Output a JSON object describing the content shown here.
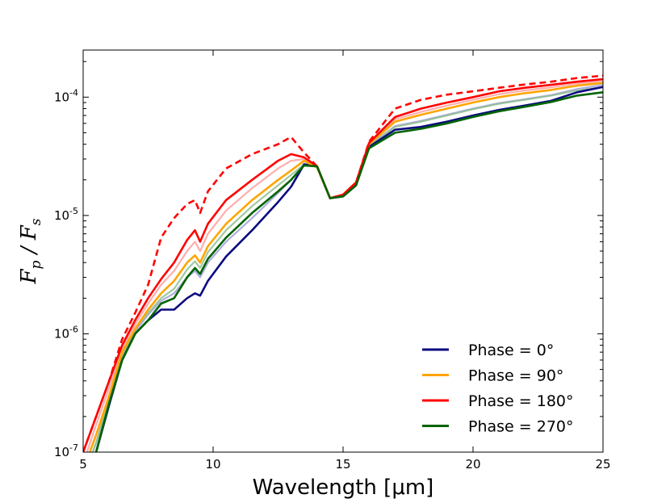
{
  "chart_data": {
    "type": "line",
    "title": "",
    "xlabel": "Wavelength [μm]",
    "ylabel": "Fp/Fs",
    "xlim": [
      5,
      25
    ],
    "ylim": [
      1e-07,
      0.00025
    ],
    "yscale": "log",
    "x_ticks": [
      5,
      10,
      15,
      20,
      25
    ],
    "x_tick_labels": [
      "5",
      "10",
      "15",
      "20",
      "25"
    ],
    "y_ticks": [
      1e-07,
      1e-06,
      1e-05,
      0.0001
    ],
    "y_tick_labels": [
      {
        "base": "10",
        "exp": "-7"
      },
      {
        "base": "10",
        "exp": "-6"
      },
      {
        "base": "10",
        "exp": "-5"
      },
      {
        "base": "10",
        "exp": "-4"
      }
    ],
    "legend_position": "lower-right",
    "x": [
      5.0,
      5.5,
      6.0,
      6.5,
      7.0,
      7.5,
      8.0,
      8.5,
      9.0,
      9.3,
      9.5,
      9.8,
      10.5,
      11.5,
      12.5,
      13.0,
      13.5,
      14.0,
      14.5,
      15.0,
      15.5,
      16.0,
      17.0,
      18.0,
      19.0,
      20.0,
      21.0,
      22.0,
      23.0,
      24.0,
      25.0
    ],
    "series": [
      {
        "name": "Phase = 0°",
        "color": "#0b0b80",
        "style": "solid",
        "values": [
          5e-08,
          1e-07,
          2.5e-07,
          6e-07,
          1e-06,
          1.3e-06,
          1.6e-06,
          1.6e-06,
          2e-06,
          2.2e-06,
          2.1e-06,
          2.8e-06,
          4.5e-06,
          7.5e-06,
          1.3e-05,
          1.75e-05,
          2.7e-05,
          2.6e-05,
          1.4e-05,
          1.45e-05,
          1.8e-05,
          3.8e-05,
          5.3e-05,
          5.6e-05,
          6.2e-05,
          7e-05,
          7.8e-05,
          8.5e-05,
          9.3e-05,
          0.00011,
          0.000122
        ]
      },
      {
        "name": "Phase = 90°",
        "color": "#ffa500",
        "style": "solid",
        "values": [
          7e-08,
          1.4e-07,
          3e-07,
          7e-07,
          1.1e-06,
          1.6e-06,
          2.2e-06,
          2.8e-06,
          4e-06,
          4.6e-06,
          4e-06,
          5.5e-06,
          8.5e-06,
          1.35e-05,
          2e-05,
          2.4e-05,
          2.9e-05,
          2.55e-05,
          1.4e-05,
          1.5e-05,
          1.9e-05,
          4e-05,
          6.2e-05,
          7.1e-05,
          8e-05,
          9e-05,
          0.0001,
          0.000108,
          0.000115,
          0.000125,
          0.000132
        ]
      },
      {
        "name": "Phase = 180°",
        "color": "#ff0000",
        "style": "solid",
        "values": [
          1e-07,
          2e-07,
          4e-07,
          8e-07,
          1.3e-06,
          2e-06,
          2.9e-06,
          4e-06,
          6.2e-06,
          7.5e-06,
          6e-06,
          8.5e-06,
          1.35e-05,
          2e-05,
          2.9e-05,
          3.3e-05,
          3.1e-05,
          2.6e-05,
          1.4e-05,
          1.5e-05,
          1.9e-05,
          4.1e-05,
          6.8e-05,
          8e-05,
          9e-05,
          0.0001,
          0.000112,
          0.00012,
          0.000127,
          0.000135,
          0.000142
        ]
      },
      {
        "name": "Phase = 270°",
        "color": "#006400",
        "style": "solid",
        "values": [
          5e-08,
          1e-07,
          2.6e-07,
          6e-07,
          1e-06,
          1.3e-06,
          1.8e-06,
          2e-06,
          3e-06,
          3.6e-06,
          3.2e-06,
          4.3e-06,
          6.5e-06,
          1.05e-05,
          1.6e-05,
          2e-05,
          2.65e-05,
          2.6e-05,
          1.4e-05,
          1.45e-05,
          1.8e-05,
          3.7e-05,
          5e-05,
          5.4e-05,
          6e-05,
          6.8e-05,
          7.6e-05,
          8.3e-05,
          9.1e-05,
          0.000103,
          0.00011
        ]
      },
      {
        "name": "",
        "color": "#ff0000",
        "style": "dashed",
        "values": [
          1e-07,
          2e-07,
          4e-07,
          9e-07,
          1.5e-06,
          2.6e-06,
          6.5e-06,
          9.5e-06,
          1.25e-05,
          1.35e-05,
          1.05e-05,
          1.6e-05,
          2.5e-05,
          3.3e-05,
          4e-05,
          4.6e-05,
          3.4e-05,
          2.6e-05,
          1.4e-05,
          1.5e-05,
          1.9e-05,
          4.2e-05,
          8e-05,
          9.5e-05,
          0.000105,
          0.000112,
          0.00012,
          0.000128,
          0.000135,
          0.000145,
          0.000152
        ]
      },
      {
        "name": "",
        "color": "#ffa0a0",
        "style": "faint",
        "values": [
          8e-08,
          1.7e-07,
          3.5e-07,
          7.5e-07,
          1.2e-06,
          1.8e-06,
          2.6e-06,
          3.4e-06,
          5e-06,
          6e-06,
          5e-06,
          7e-06,
          1.1e-05,
          1.7e-05,
          2.5e-05,
          2.9e-05,
          3e-05,
          2.6e-05,
          1.4e-05,
          1.5e-05,
          1.9e-05,
          4.05e-05,
          6.5e-05,
          7.5e-05,
          8.5e-05,
          9.5e-05,
          0.000106,
          0.000114,
          0.000121,
          0.00013,
          0.000137
        ]
      },
      {
        "name": "",
        "color": "#a0a0d8",
        "style": "faint",
        "values": [
          6e-08,
          1.2e-07,
          2.7e-07,
          6.5e-07,
          1.05e-06,
          1.45e-06,
          1.9e-06,
          2.2e-06,
          3e-06,
          3.4e-06,
          3e-06,
          4e-06,
          6e-06,
          9.5e-06,
          1.55e-05,
          2e-05,
          2.75e-05,
          2.6e-05,
          1.4e-05,
          1.45e-05,
          1.85e-05,
          3.9e-05,
          5.7e-05,
          6.3e-05,
          7.1e-05,
          8e-05,
          8.9e-05,
          9.6e-05,
          0.000104,
          0.000117,
          0.000127
        ]
      },
      {
        "name": "",
        "color": "#90c090",
        "style": "faint",
        "values": [
          6e-08,
          1.2e-07,
          2.8e-07,
          6.5e-07,
          1.1e-06,
          1.5e-06,
          2e-06,
          2.4e-06,
          3.5e-06,
          4.1e-06,
          3.6e-06,
          4.9e-06,
          7.5e-06,
          1.2e-05,
          1.8e-05,
          2.2e-05,
          2.7e-05,
          2.58e-05,
          1.4e-05,
          1.48e-05,
          1.85e-05,
          3.85e-05,
          5.6e-05,
          6.2e-05,
          7e-05,
          7.9e-05,
          8.8e-05,
          9.5e-05,
          0.000103,
          0.000114,
          0.000121
        ]
      }
    ]
  }
}
